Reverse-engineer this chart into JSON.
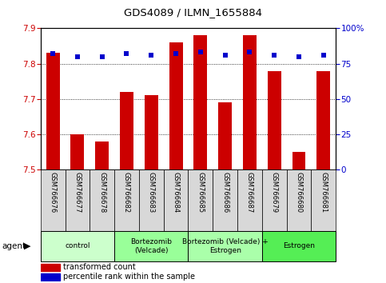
{
  "title": "GDS4089 / ILMN_1655884",
  "samples": [
    "GSM766676",
    "GSM766677",
    "GSM766678",
    "GSM766682",
    "GSM766683",
    "GSM766684",
    "GSM766685",
    "GSM766686",
    "GSM766687",
    "GSM766679",
    "GSM766680",
    "GSM766681"
  ],
  "red_values": [
    7.83,
    7.6,
    7.58,
    7.72,
    7.71,
    7.86,
    7.88,
    7.69,
    7.88,
    7.78,
    7.55,
    7.78
  ],
  "blue_values": [
    82,
    80,
    80,
    82,
    81,
    82,
    83,
    81,
    83,
    81,
    80,
    81
  ],
  "ylim_left": [
    7.5,
    7.9
  ],
  "ylim_right": [
    0,
    100
  ],
  "yticks_left": [
    7.5,
    7.6,
    7.7,
    7.8,
    7.9
  ],
  "yticks_right": [
    0,
    25,
    50,
    75,
    100
  ],
  "ytick_labels_right": [
    "0",
    "25",
    "50",
    "75",
    "100%"
  ],
  "groups": [
    {
      "label": "control",
      "start": 0,
      "end": 3,
      "color": "#ccffcc"
    },
    {
      "label": "Bortezomib\n(Velcade)",
      "start": 3,
      "end": 6,
      "color": "#99ff99"
    },
    {
      "label": "Bortezomib (Velcade) +\nEstrogen",
      "start": 6,
      "end": 9,
      "color": "#aaffaa"
    },
    {
      "label": "Estrogen",
      "start": 9,
      "end": 12,
      "color": "#55ee55"
    }
  ],
  "legend_red_label": "transformed count",
  "legend_blue_label": "percentile rank within the sample",
  "bar_color": "#cc0000",
  "dot_color": "#0000cc",
  "agent_label": "agent",
  "sample_bg_color": "#d8d8d8",
  "plot_bg": "#ffffff",
  "bar_width": 0.55,
  "tick_color_left": "#cc0000",
  "tick_color_right": "#0000cc"
}
